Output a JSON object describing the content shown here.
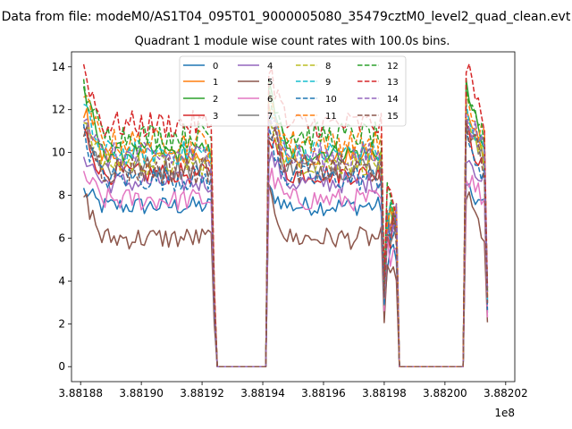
{
  "chart_data": {
    "type": "line",
    "suptitle": "Data from file: modeM0/AS1T04_095T01_9000005080_35479cztM0_level2_quad_clean.evt",
    "title": "Quadrant 1 module wise count rates with 100.0s bins.",
    "xlabel": "",
    "ylabel": "",
    "x_offset_label": "1e8",
    "xlim": [
      388187700,
      388202300
    ],
    "ylim": [
      -0.7,
      14.7
    ],
    "xticks": [
      388188000,
      388190000,
      388192000,
      388194000,
      388196000,
      388198000,
      388200000,
      388202000
    ],
    "xtick_labels": [
      "3.88188",
      "3.88190",
      "3.88192",
      "3.88194",
      "3.88196",
      "3.88198",
      "3.88200",
      "3.88202"
    ],
    "yticks": [
      0,
      2,
      4,
      6,
      8,
      10,
      12,
      14
    ],
    "ytick_labels": [
      "0",
      "2",
      "4",
      "6",
      "8",
      "10",
      "12",
      "14"
    ],
    "grid": false,
    "legend": {
      "placement": "top-center",
      "columns": 4
    },
    "segments": [
      {
        "from": 388188100,
        "to": 388192400,
        "active": true
      },
      {
        "from": 388192500,
        "to": 388194100,
        "active": false
      },
      {
        "from": 388194200,
        "to": 388198000,
        "active": true
      },
      {
        "from": 388198100,
        "to": 388198400,
        "active": true
      },
      {
        "from": 388198500,
        "to": 388200600,
        "active": false
      },
      {
        "from": 388200700,
        "to": 388201400,
        "active": true
      }
    ],
    "series": [
      {
        "name": "0",
        "color": "#1f77b4",
        "dash": "solid",
        "level": 7.5,
        "start": 8.2,
        "dip": 2.1
      },
      {
        "name": "1",
        "color": "#ff7f0e",
        "dash": "solid",
        "level": 9.8,
        "start": 12.0,
        "dip": 3.0
      },
      {
        "name": "2",
        "color": "#2ca02c",
        "dash": "solid",
        "level": 10.0,
        "start": 13.0,
        "dip": 3.2
      },
      {
        "name": "3",
        "color": "#d62728",
        "dash": "solid",
        "level": 9.0,
        "start": 11.0,
        "dip": 2.6
      },
      {
        "name": "4",
        "color": "#9467bd",
        "dash": "solid",
        "level": 8.6,
        "start": 10.0,
        "dip": 2.5
      },
      {
        "name": "5",
        "color": "#8c564b",
        "dash": "solid",
        "level": 6.0,
        "start": 8.0,
        "dip": 1.5
      },
      {
        "name": "6",
        "color": "#e377c2",
        "dash": "solid",
        "level": 7.8,
        "start": 9.0,
        "dip": 2.2
      },
      {
        "name": "7",
        "color": "#7f7f7f",
        "dash": "solid",
        "level": 9.3,
        "start": 11.5,
        "dip": 2.8
      },
      {
        "name": "8",
        "color": "#bcbd22",
        "dash": "dashed",
        "level": 9.5,
        "start": 11.8,
        "dip": 2.9
      },
      {
        "name": "9",
        "color": "#17becf",
        "dash": "dashed",
        "level": 10.0,
        "start": 12.0,
        "dip": 3.0
      },
      {
        "name": "10",
        "color": "#1f77b4",
        "dash": "dashed",
        "level": 8.8,
        "start": 10.8,
        "dip": 2.6
      },
      {
        "name": "11",
        "color": "#ff7f0e",
        "dash": "dashed",
        "level": 10.5,
        "start": 12.5,
        "dip": 3.1
      },
      {
        "name": "12",
        "color": "#2ca02c",
        "dash": "dashed",
        "level": 10.8,
        "start": 13.0,
        "dip": 3.3
      },
      {
        "name": "13",
        "color": "#d62728",
        "dash": "dashed",
        "level": 11.3,
        "start": 14.0,
        "dip": 3.5
      },
      {
        "name": "14",
        "color": "#9467bd",
        "dash": "dashed",
        "level": 9.8,
        "start": 12.0,
        "dip": 3.0
      },
      {
        "name": "15",
        "color": "#8c564b",
        "dash": "dashed",
        "level": 9.2,
        "start": 11.2,
        "dip": 2.8
      }
    ]
  }
}
